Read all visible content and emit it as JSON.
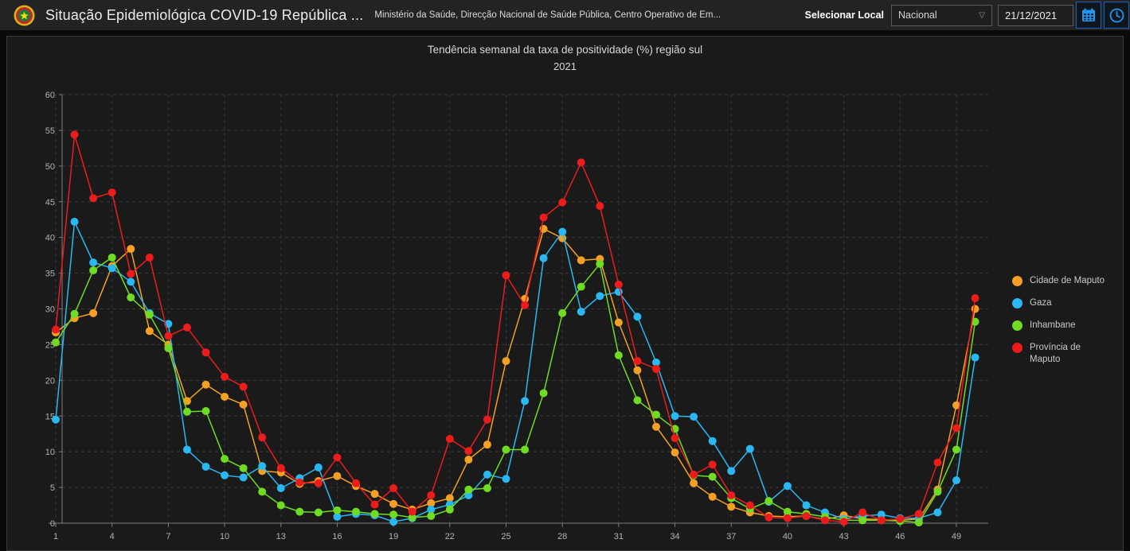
{
  "header": {
    "title": "Situação Epidemiológica COVID-19 República ...",
    "subtitle": "Ministério da Saúde, Direcção Nacional de Saúde Pública, Centro Operativo de Em...",
    "selector_label": "Selecionar Local",
    "selector_value": "Nacional",
    "date_value": "21/12/2021",
    "accent_color": "#2196f3",
    "icons": {
      "calendar": "calendar-icon",
      "clock": "clock-icon",
      "emblem": "mozambique-emblem-icon",
      "chevron": "chevron-down-icon"
    }
  },
  "chart_data": {
    "type": "line",
    "title": "Tendência semanal da taxa de positividade (%) região sul",
    "subtitle": "2021",
    "xlabel": "",
    "ylabel": "",
    "x_range": [
      1,
      50
    ],
    "x_ticks": [
      1,
      4,
      7,
      10,
      13,
      16,
      19,
      22,
      25,
      28,
      31,
      34,
      37,
      40,
      43,
      46,
      49
    ],
    "y_ticks": [
      0,
      5,
      10,
      15,
      20,
      25,
      30,
      35,
      40,
      45,
      50,
      55,
      60
    ],
    "ylim": [
      0,
      60
    ],
    "grid": true,
    "legend_position": "right",
    "series": [
      {
        "name": "Cidade de Maputo",
        "color": "#f4a024",
        "values": [
          26.7,
          28.7,
          29.4,
          36.0,
          38.4,
          26.9,
          25.0,
          17.1,
          19.4,
          17.7,
          16.6,
          7.3,
          7.1,
          5.5,
          5.9,
          6.6,
          5.2,
          4.1,
          2.7,
          1.9,
          2.8,
          3.5,
          8.9,
          11.0,
          22.7,
          31.4,
          41.2,
          39.9,
          36.8,
          37.0,
          28.1,
          21.4,
          13.5,
          9.9,
          5.6,
          3.7,
          2.3,
          1.5,
          1.0,
          0.9,
          1.0,
          0.5,
          1.1,
          0.6,
          0.5,
          0.4,
          0.6,
          4.7,
          16.5,
          30.0
        ]
      },
      {
        "name": "Gaza",
        "color": "#29b8f2",
        "values": [
          14.5,
          42.2,
          36.5,
          35.7,
          33.8,
          29.4,
          27.9,
          10.3,
          7.9,
          6.7,
          6.4,
          8.0,
          4.9,
          6.3,
          7.8,
          0.9,
          1.3,
          1.1,
          0.2,
          0.7,
          1.9,
          2.6,
          3.9,
          6.8,
          6.2,
          17.1,
          37.1,
          40.8,
          29.6,
          31.8,
          32.4,
          28.9,
          22.5,
          15.0,
          14.9,
          11.5,
          7.3,
          10.4,
          3.0,
          5.2,
          2.5,
          1.5,
          0.6,
          1.0,
          1.2,
          0.7,
          0.7,
          1.5,
          6.0,
          23.2
        ]
      },
      {
        "name": "Inhambane",
        "color": "#6fdc23",
        "values": [
          25.3,
          29.3,
          35.4,
          37.2,
          31.6,
          29.2,
          24.5,
          15.6,
          15.7,
          9.0,
          7.7,
          4.4,
          2.5,
          1.6,
          1.5,
          1.8,
          1.6,
          1.3,
          1.2,
          0.8,
          1.0,
          1.9,
          4.7,
          4.9,
          10.3,
          10.3,
          18.2,
          29.4,
          33.1,
          36.3,
          23.5,
          17.2,
          15.2,
          13.2,
          6.7,
          6.5,
          3.5,
          2.0,
          3.1,
          1.6,
          1.3,
          0.9,
          0.4,
          0.4,
          0.4,
          0.3,
          0.1,
          4.4,
          10.3,
          28.2
        ]
      },
      {
        "name": "Província de Maputo",
        "color": "#ed1c1c",
        "values": [
          27.1,
          54.4,
          45.5,
          46.3,
          34.9,
          37.2,
          26.2,
          27.4,
          23.9,
          20.5,
          19.1,
          12.0,
          7.7,
          5.7,
          5.6,
          9.2,
          5.6,
          2.6,
          4.9,
          1.6,
          3.9,
          11.8,
          10.1,
          14.5,
          34.7,
          30.5,
          42.8,
          44.9,
          50.5,
          44.4,
          33.4,
          22.7,
          21.6,
          11.9,
          6.8,
          8.2,
          3.9,
          2.5,
          0.8,
          0.7,
          1.0,
          0.4,
          0.2,
          1.5,
          0.4,
          0.6,
          1.3,
          8.5,
          13.3,
          31.5
        ]
      }
    ]
  }
}
